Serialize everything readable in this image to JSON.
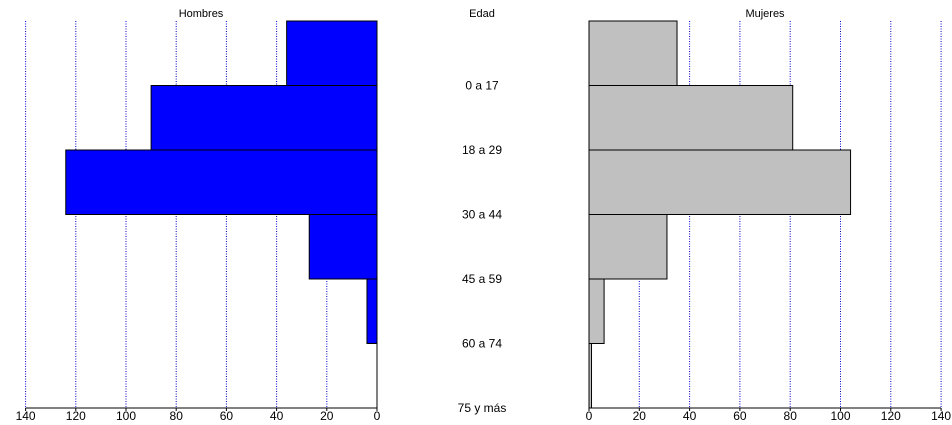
{
  "chart_data": {
    "type": "bar",
    "subtype": "population-pyramid",
    "center_title": "Edad",
    "categories": [
      "0 a 17",
      "18 a 29",
      "30 a 44",
      "45 a 59",
      "60 a 74",
      "75 y más"
    ],
    "series": [
      {
        "name": "Hombres",
        "values": [
          36,
          90,
          124,
          27,
          4,
          0
        ],
        "color": "#0000ff",
        "side": "left"
      },
      {
        "name": "Mujeres",
        "values": [
          35,
          81,
          104,
          31,
          6,
          1
        ],
        "color": "#c0c0c0",
        "side": "right"
      }
    ],
    "xlim": [
      0,
      140
    ],
    "x_ticks": [
      0,
      20,
      40,
      60,
      80,
      100,
      120,
      140
    ],
    "x_tick_labels": [
      "0",
      "20",
      "40",
      "60",
      "80",
      "100",
      "120",
      "140"
    ],
    "grid": "vertical dotted",
    "grid_color": "#0000cc"
  }
}
